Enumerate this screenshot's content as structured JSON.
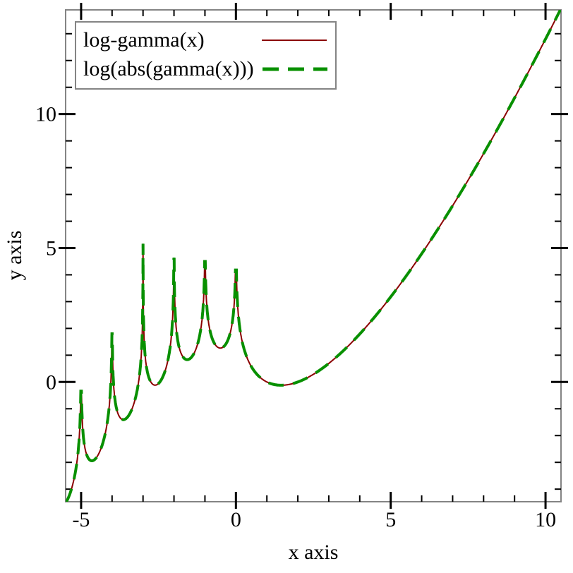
{
  "chart_data": {
    "type": "line",
    "title": "",
    "xlabel": "x axis",
    "ylabel": "y axis",
    "xlim": [
      -5.5,
      10.5
    ],
    "ylim": [
      -4.47,
      13.89
    ],
    "x_major_ticks": [
      -5,
      0,
      5,
      10
    ],
    "x_tick_labels": [
      "-5",
      "0",
      "5",
      "10"
    ],
    "y_major_ticks": [
      0,
      5,
      10
    ],
    "y_tick_labels": [
      "0",
      "5",
      "10"
    ],
    "minor_tick_step": 1,
    "grid": false,
    "legend_position": "top-left",
    "axis_color": "#848484",
    "tick_color": "#000000",
    "series": [
      {
        "label": "log-gamma(x)",
        "expression": "log(abs(gamma(x)))",
        "color": "#8b0000",
        "line_style": "solid",
        "line_width": 2
      },
      {
        "label": "log(abs(gamma(x)))",
        "expression": "log(abs(gamma(x)))",
        "color": "#089000",
        "line_style": "dashed",
        "line_width": 4,
        "dash_pattern": [
          22,
          14
        ]
      }
    ],
    "poles": [
      {
        "x": -5,
        "peak_y": -0.34
      },
      {
        "x": -4,
        "peak_y": 1.8
      },
      {
        "x": -3,
        "peak_y": 5.16
      },
      {
        "x": -2,
        "peak_y": 4.63
      },
      {
        "x": -1,
        "peak_y": 4.5
      },
      {
        "x": 0,
        "peak_y": 4.18
      }
    ],
    "sample_points": [
      {
        "x": -5.5,
        "y": -4.52
      },
      {
        "x": -4.5,
        "y": -2.81
      },
      {
        "x": -3.5,
        "y": -1.31
      },
      {
        "x": -2.5,
        "y": -0.06
      },
      {
        "x": -1.5,
        "y": 0.86
      },
      {
        "x": -0.5,
        "y": 1.27
      },
      {
        "x": 0.5,
        "y": 0.57
      },
      {
        "x": 1,
        "y": 0
      },
      {
        "x": 1.46,
        "y": -0.12
      },
      {
        "x": 2,
        "y": 0
      },
      {
        "x": 3,
        "y": 0.69
      },
      {
        "x": 4,
        "y": 1.79
      },
      {
        "x": 5,
        "y": 3.18
      },
      {
        "x": 6,
        "y": 4.79
      },
      {
        "x": 7,
        "y": 6.58
      },
      {
        "x": 8,
        "y": 8.53
      },
      {
        "x": 9,
        "y": 10.6
      },
      {
        "x": 10,
        "y": 12.8
      },
      {
        "x": 10.5,
        "y": 13.94
      }
    ]
  }
}
